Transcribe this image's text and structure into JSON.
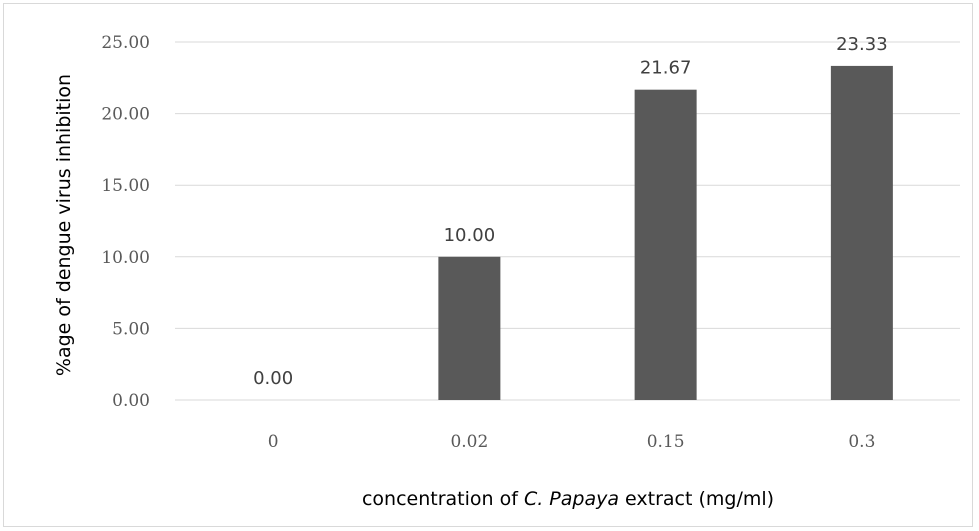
{
  "chart_data": {
    "type": "bar",
    "categories": [
      "0",
      "0.02",
      "0.15",
      "0.3"
    ],
    "values": [
      0.0,
      10.0,
      21.67,
      23.33
    ],
    "value_labels": [
      "0.00",
      "10.00",
      "21.67",
      "23.33"
    ],
    "yticks": [
      "0.00",
      "5.00",
      "10.00",
      "15.00",
      "20.00",
      "25.00"
    ],
    "ylim": [
      0,
      25
    ],
    "ylabel": "%age of dengue virus inhibition",
    "xlabel": {
      "prefix": "concentration of ",
      "italic": "C. Papaya",
      "suffix": " extract (mg/ml)"
    },
    "grid": true,
    "bar_color": "#595959",
    "grid_color": "#d9d9d9"
  }
}
